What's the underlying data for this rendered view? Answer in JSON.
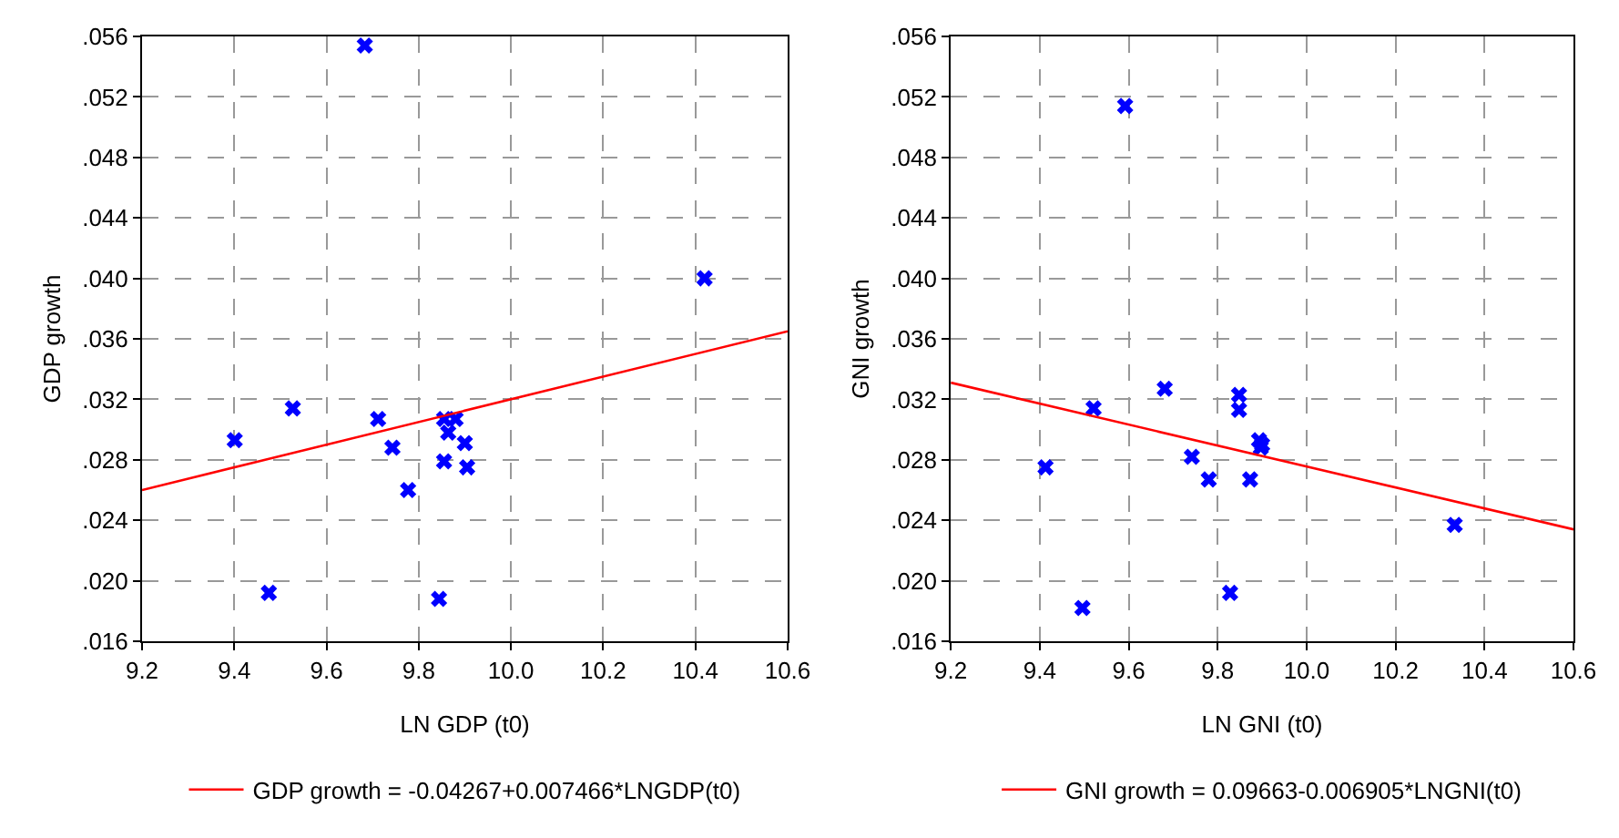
{
  "chart_data": [
    {
      "type": "scatter",
      "xlabel": "LN GDP (t0)",
      "ylabel": "GDP growth",
      "xlim": [
        9.2,
        10.6
      ],
      "xticks": [
        {
          "value": 9.2,
          "label": "9.2"
        },
        {
          "value": 9.4,
          "label": "9.4"
        },
        {
          "value": 9.6,
          "label": "9.6"
        },
        {
          "value": 9.8,
          "label": "9.8"
        },
        {
          "value": 10,
          "label": "10.0"
        },
        {
          "value": 10.2,
          "label": "10.2"
        },
        {
          "value": 10.4,
          "label": "10.4"
        },
        {
          "value": 10.6,
          "label": "10.6"
        }
      ],
      "ylim": [
        0.016,
        0.056
      ],
      "yticks": [
        {
          "value": 0.016,
          "label": ".016"
        },
        {
          "value": 0.02,
          "label": ".020"
        },
        {
          "value": 0.024,
          "label": ".024"
        },
        {
          "value": 0.028,
          "label": ".028"
        },
        {
          "value": 0.032,
          "label": ".032"
        },
        {
          "value": 0.036,
          "label": ".036"
        },
        {
          "value": 0.04,
          "label": ".040"
        },
        {
          "value": 0.044,
          "label": ".044"
        },
        {
          "value": 0.048,
          "label": ".048"
        },
        {
          "value": 0.052,
          "label": ".052"
        },
        {
          "value": 0.056,
          "label": ".056"
        }
      ],
      "grid": true,
      "legend": "bottom",
      "series": [
        {
          "marker": "cross",
          "color": "#0000ff",
          "x": [
            9.683,
            10.42,
            9.527,
            9.401,
            9.712,
            9.743,
            9.777,
            9.855,
            9.88,
            9.864,
            9.9,
            9.855,
            9.905,
            9.475,
            9.844
          ],
          "values": [
            0.0554,
            0.04,
            0.0314,
            0.0293,
            0.0307,
            0.0288,
            0.026,
            0.0307,
            0.0307,
            0.0298,
            0.0291,
            0.0279,
            0.0275,
            0.0192,
            0.0188
          ]
        },
        {
          "type": "line",
          "name": "GDP growth = -0.04267+0.007466*LNGDP(t0)",
          "color": "#ff0000",
          "x": [
            9.2,
            10.6
          ],
          "values": [
            0.026,
            0.0365
          ]
        }
      ]
    },
    {
      "type": "scatter",
      "xlabel": "LN GNI (t0)",
      "ylabel": "GNI growth",
      "xlim": [
        9.2,
        10.6
      ],
      "xticks": [
        {
          "value": 9.2,
          "label": "9.2"
        },
        {
          "value": 9.4,
          "label": "9.4"
        },
        {
          "value": 9.6,
          "label": "9.6"
        },
        {
          "value": 9.8,
          "label": "9.8"
        },
        {
          "value": 10,
          "label": "10.0"
        },
        {
          "value": 10.2,
          "label": "10.2"
        },
        {
          "value": 10.4,
          "label": "10.4"
        },
        {
          "value": 10.6,
          "label": "10.6"
        }
      ],
      "ylim": [
        0.016,
        0.056
      ],
      "yticks": [
        {
          "value": 0.016,
          "label": ".016"
        },
        {
          "value": 0.02,
          "label": ".020"
        },
        {
          "value": 0.024,
          "label": ".024"
        },
        {
          "value": 0.028,
          "label": ".028"
        },
        {
          "value": 0.032,
          "label": ".032"
        },
        {
          "value": 0.036,
          "label": ".036"
        },
        {
          "value": 0.04,
          "label": ".040"
        },
        {
          "value": 0.044,
          "label": ".044"
        },
        {
          "value": 0.048,
          "label": ".048"
        },
        {
          "value": 0.052,
          "label": ".052"
        },
        {
          "value": 0.056,
          "label": ".056"
        }
      ],
      "grid": true,
      "legend": "bottom",
      "series": [
        {
          "marker": "cross",
          "color": "#0000ff",
          "x": [
            9.592,
            9.681,
            9.521,
            9.413,
            9.742,
            9.78,
            9.873,
            9.848,
            9.848,
            9.893,
            9.897,
            9.9,
            9.828,
            9.496,
            10.333
          ],
          "values": [
            0.0514,
            0.0327,
            0.0314,
            0.0275,
            0.0282,
            0.0267,
            0.0267,
            0.0323,
            0.0313,
            0.0293,
            0.0288,
            0.029,
            0.0192,
            0.0182,
            0.0237
          ]
        },
        {
          "type": "line",
          "name": "GNI growth = 0.09663-0.006905*LNGNI(t0)",
          "color": "#ff0000",
          "x": [
            9.2,
            10.6
          ],
          "values": [
            0.0331,
            0.0234
          ]
        }
      ]
    }
  ]
}
